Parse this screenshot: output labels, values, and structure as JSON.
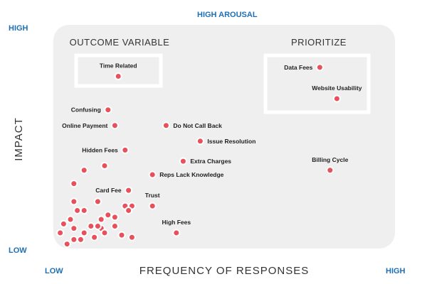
{
  "chart_data": {
    "type": "scatter",
    "title": "",
    "xlabel": "FREQUENCY OF RESPONSES",
    "ylabel": "IMPACT",
    "xlim": [
      0,
      100
    ],
    "ylim": [
      0,
      100
    ],
    "grid": false,
    "corner_labels": {
      "y_high": "HIGH",
      "y_low": "LOW",
      "x_low": "LOW",
      "x_high": "HIGH",
      "top": "HIGH AROUSAL"
    },
    "zones": {
      "outcome": "OUTCOME VARIABLE",
      "prioritize": "PRIORITIZE"
    },
    "point_color": "#e8505b",
    "labeled_points": [
      {
        "label": "Time Related",
        "x": 19,
        "y": 77,
        "label_pos": "above"
      },
      {
        "label": "Data Fees",
        "x": 78,
        "y": 81,
        "label_pos": "left"
      },
      {
        "label": "Website Usability",
        "x": 83,
        "y": 67,
        "label_pos": "above"
      },
      {
        "label": "Confusing",
        "x": 16,
        "y": 62,
        "label_pos": "left"
      },
      {
        "label": "Online Payment",
        "x": 18,
        "y": 55,
        "label_pos": "left"
      },
      {
        "label": "Do Not Call Back",
        "x": 33,
        "y": 55,
        "label_pos": "right"
      },
      {
        "label": "Issue Resolution",
        "x": 43,
        "y": 48,
        "label_pos": "right"
      },
      {
        "label": "Hidden Fees",
        "x": 21,
        "y": 44,
        "label_pos": "left"
      },
      {
        "label": "Extra Charges",
        "x": 38,
        "y": 39,
        "label_pos": "right"
      },
      {
        "label": "Reps Lack Knowledge",
        "x": 29,
        "y": 33,
        "label_pos": "right"
      },
      {
        "label": "Billing Cycle",
        "x": 81,
        "y": 35,
        "label_pos": "above"
      },
      {
        "label": "Card Fee",
        "x": 22,
        "y": 26,
        "label_pos": "left"
      },
      {
        "label": "Trust",
        "x": 29,
        "y": 19,
        "label_pos": "above"
      },
      {
        "label": "High Fees",
        "x": 36,
        "y": 7,
        "label_pos": "above"
      }
    ],
    "unlabeled_points": [
      [
        9,
        35
      ],
      [
        15,
        37
      ],
      [
        6,
        29
      ],
      [
        6,
        21
      ],
      [
        7,
        17
      ],
      [
        9,
        17
      ],
      [
        13,
        21
      ],
      [
        21,
        19
      ],
      [
        23,
        19
      ],
      [
        22,
        17
      ],
      [
        5,
        13
      ],
      [
        3,
        11
      ],
      [
        6,
        9
      ],
      [
        2,
        7
      ],
      [
        4,
        2
      ],
      [
        6,
        4
      ],
      [
        8,
        4
      ],
      [
        9,
        7
      ],
      [
        11,
        10
      ],
      [
        14,
        13
      ],
      [
        16,
        15
      ],
      [
        18,
        14
      ],
      [
        18,
        10
      ],
      [
        14,
        9
      ],
      [
        15,
        7
      ],
      [
        12,
        5
      ],
      [
        13,
        10
      ],
      [
        20,
        6
      ],
      [
        23,
        5
      ]
    ]
  }
}
